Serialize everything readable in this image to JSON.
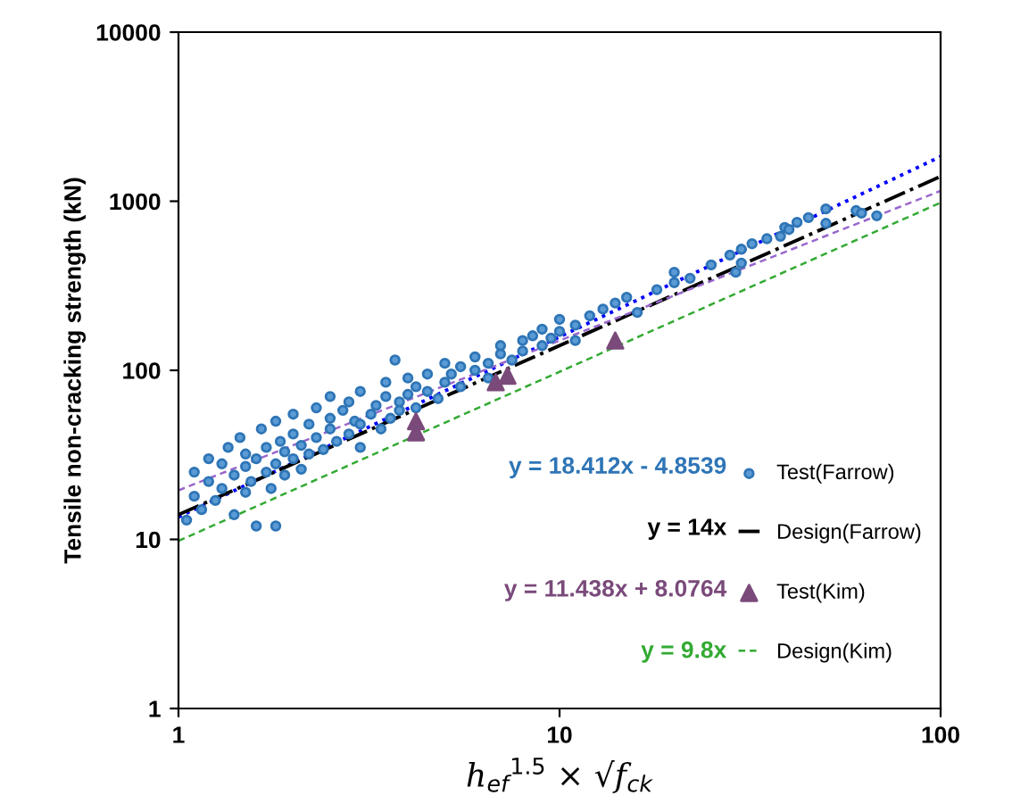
{
  "chart_data": {
    "type": "scatter",
    "xlabel": "h$_{ef}$$^{1.5}$ × √f$_{ck}$",
    "ylabel": "Tensile non-cracking strength (kN)",
    "log": "xy",
    "xlim": [
      1,
      100
    ],
    "ylim": [
      1,
      10000
    ],
    "xticks": [
      1,
      10,
      100
    ],
    "yticks": [
      1,
      10,
      100,
      1000,
      10000
    ],
    "grid": false,
    "legend": "bottom right",
    "annotations": [
      "y = 18.412x - 4.8539",
      "y = 14x",
      "y = 11.438x + 8.0764",
      "y = 9.8x"
    ],
    "series": [
      {
        "name": "Test(Farrow)",
        "marker": "circle",
        "color": "#2e75b6",
        "x": [
          1.05,
          1.1,
          1.1,
          1.15,
          1.2,
          1.2,
          1.25,
          1.3,
          1.3,
          1.35,
          1.4,
          1.4,
          1.45,
          1.5,
          1.5,
          1.5,
          1.55,
          1.6,
          1.6,
          1.65,
          1.7,
          1.7,
          1.75,
          1.8,
          1.8,
          1.8,
          1.85,
          1.9,
          1.9,
          2.0,
          2.0,
          2.0,
          2.1,
          2.1,
          2.2,
          2.2,
          2.3,
          2.3,
          2.4,
          2.5,
          2.5,
          2.5,
          2.6,
          2.7,
          2.8,
          2.8,
          2.9,
          3.0,
          3.0,
          3.0,
          3.2,
          3.3,
          3.4,
          3.5,
          3.5,
          3.6,
          3.7,
          3.8,
          3.8,
          4.0,
          4.0,
          4.2,
          4.2,
          4.5,
          4.5,
          4.8,
          5.0,
          5.0,
          5.2,
          5.5,
          5.5,
          6.0,
          6.0,
          6.5,
          6.5,
          7.0,
          7.0,
          7.5,
          8.0,
          8.0,
          8.5,
          9.0,
          9.0,
          9.5,
          10,
          10,
          11,
          11,
          12,
          13,
          14,
          15,
          16,
          18,
          20,
          20,
          22,
          25,
          28,
          29,
          30,
          30,
          32,
          35,
          38,
          39,
          40,
          42,
          45,
          50,
          50,
          60,
          62,
          68
        ],
        "values": [
          13,
          18,
          25,
          15,
          22,
          30,
          17,
          20,
          28,
          35,
          14,
          24,
          40,
          19,
          27,
          32,
          22,
          12,
          30,
          45,
          25,
          35,
          20,
          28,
          50,
          12,
          38,
          24,
          33,
          30,
          42,
          55,
          26,
          36,
          48,
          32,
          40,
          60,
          34,
          45,
          52,
          70,
          38,
          58,
          42,
          65,
          50,
          48,
          75,
          35,
          55,
          62,
          45,
          70,
          85,
          52,
          115,
          65,
          58,
          72,
          90,
          60,
          80,
          75,
          95,
          68,
          85,
          110,
          95,
          80,
          105,
          100,
          120,
          110,
          90,
          125,
          140,
          115,
          130,
          150,
          160,
          140,
          175,
          155,
          170,
          200,
          185,
          150,
          210,
          230,
          250,
          270,
          220,
          300,
          330,
          380,
          350,
          420,
          480,
          380,
          520,
          430,
          560,
          600,
          620,
          700,
          680,
          750,
          800,
          900,
          740,
          880,
          850,
          820
        ]
      },
      {
        "type": "line",
        "line_style": "dotted",
        "color": "#0000ff",
        "x": [
          1,
          100
        ],
        "values": [
          13.56,
          1836.3
        ]
      },
      {
        "name": "Design(Farrow)",
        "type": "line",
        "line_style": "dashdot",
        "color": "#000000",
        "x": [
          1,
          100
        ],
        "values": [
          14,
          1400
        ]
      },
      {
        "type": "line",
        "line_style": "dashed",
        "color": "#9966cc",
        "x": [
          1,
          100
        ],
        "values": [
          19.51,
          1151.9
        ]
      },
      {
        "name": "Test(Kim)",
        "type": "scatter",
        "marker": "triangle",
        "color": "#7a4a7a",
        "x": [
          4.2,
          4.2,
          6.8,
          7.3,
          14
        ],
        "values": [
          43,
          50,
          85,
          93,
          150
        ]
      },
      {
        "name": "Design(Kim)",
        "type": "line",
        "line_style": "dashed",
        "color": "#33aa33",
        "x": [
          1,
          100
        ],
        "values": [
          9.8,
          980
        ]
      }
    ]
  }
}
